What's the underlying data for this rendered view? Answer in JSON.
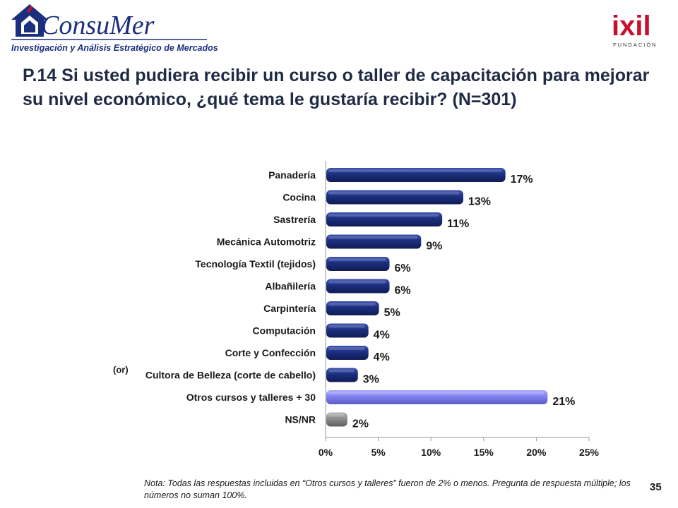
{
  "header": {
    "logo_left": {
      "name": "ConsuMer",
      "tagline": "Investigación y Análisis Estratégico de Mercados"
    },
    "logo_right": {
      "name": "ixil",
      "sub": "FUNDACIÓN"
    }
  },
  "title": "P.14  Si usted pudiera recibir un curso o taller de capacitación para mejorar su nivel económico, ¿qué tema le gustaría recibir? (N=301)",
  "colors": {
    "bar_main": "#1c2f7e",
    "bar_other": "#8181ef",
    "bar_nsnr": "#8c8c8c",
    "title": "#1f2a44"
  },
  "chart_data": {
    "type": "bar",
    "orientation": "horizontal",
    "categories": [
      "Panadería",
      "Cocina",
      "Sastrería",
      "Mecánica Automotriz",
      "Tecnología Textil (tejidos)",
      "Albañilería",
      "Carpintería",
      "Computación",
      "Corte y Confección",
      "Cultora de Belleza (corte de cabello)",
      "Otros cursos y talleres + 30",
      "NS/NR"
    ],
    "values": [
      17,
      13,
      11,
      9,
      6,
      6,
      5,
      4,
      4,
      3,
      21,
      2
    ],
    "value_labels": [
      "17%",
      "13%",
      "11%",
      "9%",
      "6%",
      "6%",
      "5%",
      "4%",
      "4%",
      "3%",
      "21%",
      "2%"
    ],
    "xlim": [
      0,
      25
    ],
    "x_ticks": [
      "0%",
      "5%",
      "10%",
      "15%",
      "20%",
      "25%"
    ],
    "grid": false,
    "annotation": "(or)"
  },
  "footnote": "Nota: Todas las respuestas incluidas en “Otros cursos y talleres” fueron de 2% o menos. Pregunta de respuesta múltiple; los números no suman 100%.",
  "page_number": "35"
}
